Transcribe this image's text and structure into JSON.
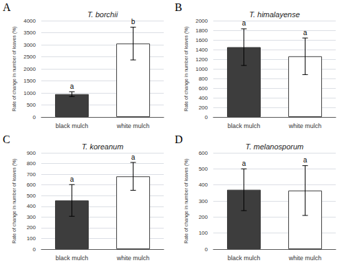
{
  "chart_data": [
    {
      "type": "bar",
      "panel_label": "A",
      "title": "T. borchii",
      "categories": [
        "black mulch",
        "white mulch"
      ],
      "values": [
        950,
        3050
      ],
      "errors": [
        100,
        680
      ],
      "colors": [
        "#3d3d3d",
        "#ffffff"
      ],
      "ylabel": "Rate of change in number of leaves (%)",
      "ylim": [
        0,
        4000
      ],
      "yticks": [
        0,
        500,
        1000,
        1500,
        2000,
        2500,
        3000,
        3500,
        4000
      ],
      "annotations": [
        {
          "text": "a",
          "category": "black mulch"
        },
        {
          "text": "b",
          "category": "white mulch"
        }
      ],
      "grid": true
    },
    {
      "type": "bar",
      "panel_label": "B",
      "title": "T. himalayense",
      "categories": [
        "black mulch",
        "white mulch"
      ],
      "values": [
        1450,
        1260
      ],
      "errors": [
        380,
        380
      ],
      "colors": [
        "#3d3d3d",
        "#ffffff"
      ],
      "ylabel": "Rate of change in number of leaves (%)",
      "ylim": [
        0,
        2000
      ],
      "yticks": [
        0,
        200,
        400,
        600,
        800,
        1000,
        1200,
        1400,
        1600,
        1800,
        2000
      ],
      "annotations": [
        {
          "text": "a",
          "category": "black mulch"
        },
        {
          "text": "a",
          "category": "white mulch"
        }
      ],
      "grid": true
    },
    {
      "type": "bar",
      "panel_label": "C",
      "title": "T. koreanum",
      "categories": [
        "black mulch",
        "white mulch"
      ],
      "values": [
        455,
        680
      ],
      "errors": [
        148,
        130
      ],
      "colors": [
        "#3d3d3d",
        "#ffffff"
      ],
      "ylabel": "Rate of change in number of leaves (%)",
      "ylim": [
        0,
        900
      ],
      "yticks": [
        0,
        100,
        200,
        300,
        400,
        500,
        600,
        700,
        800,
        900
      ],
      "annotations": [
        {
          "text": "a",
          "category": "black mulch"
        },
        {
          "text": "a",
          "category": "white mulch"
        }
      ],
      "grid": true
    },
    {
      "type": "bar",
      "panel_label": "D",
      "title": "T. melanosporum",
      "categories": [
        "black mulch",
        "white mulch"
      ],
      "values": [
        370,
        365
      ],
      "errors": [
        130,
        155
      ],
      "colors": [
        "#3d3d3d",
        "#ffffff"
      ],
      "ylabel": "Rate of change in number of leaves (%)",
      "ylim": [
        0,
        600
      ],
      "yticks": [
        0,
        100,
        200,
        300,
        400,
        500,
        600
      ],
      "annotations": [
        {
          "text": "a",
          "category": "black mulch"
        },
        {
          "text": "a",
          "category": "white mulch"
        }
      ],
      "grid": true
    }
  ]
}
